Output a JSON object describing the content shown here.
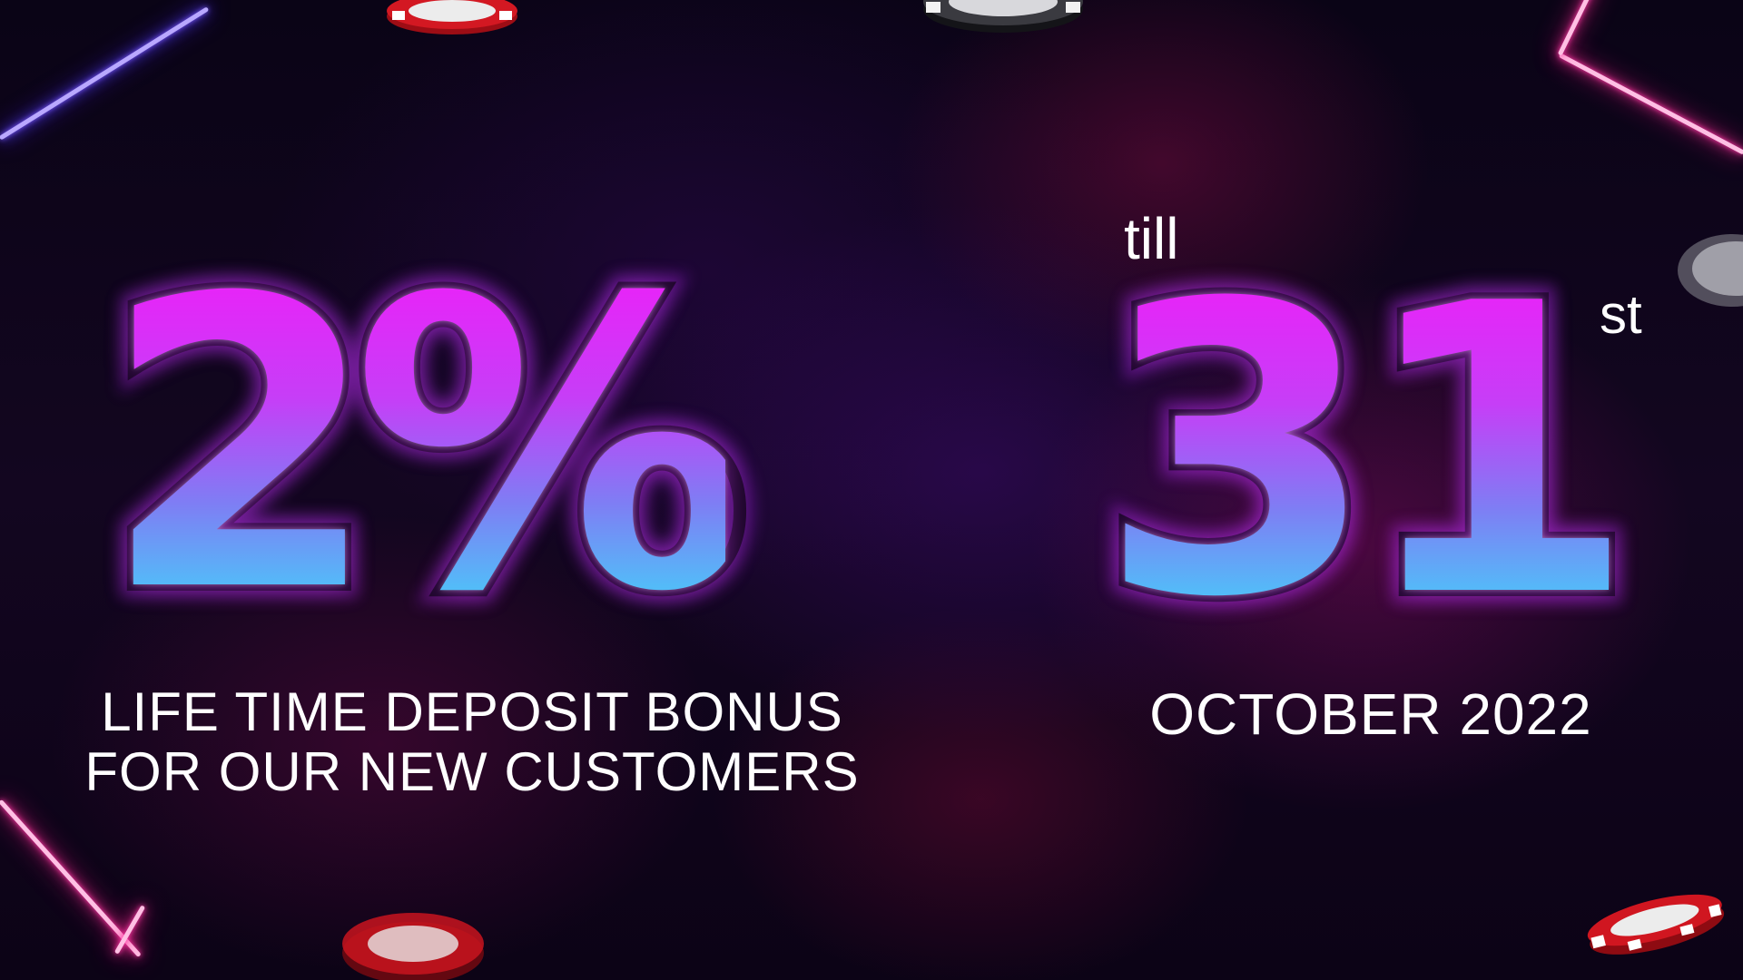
{
  "promo": {
    "percent": "2%",
    "bonus_line_1": "LIFE TIME DEPOSIT BONUS",
    "bonus_line_2": "FOR OUR NEW CUSTOMERS"
  },
  "deadline": {
    "prefix": "till",
    "day": "31",
    "suffix": "st",
    "month_year": "OCTOBER 2022"
  },
  "colors": {
    "gradient_top": "#f21cf9",
    "gradient_bottom": "#35e6fb",
    "neon_blue": "#5b3cff",
    "neon_pink": "#ff2f9a",
    "chip_red": "#c8141e",
    "chip_black": "#2a2a2e"
  },
  "decorations": {
    "chips": [
      "red-chip",
      "black-chip",
      "white-chip",
      "red-chip",
      "red-chip"
    ]
  }
}
